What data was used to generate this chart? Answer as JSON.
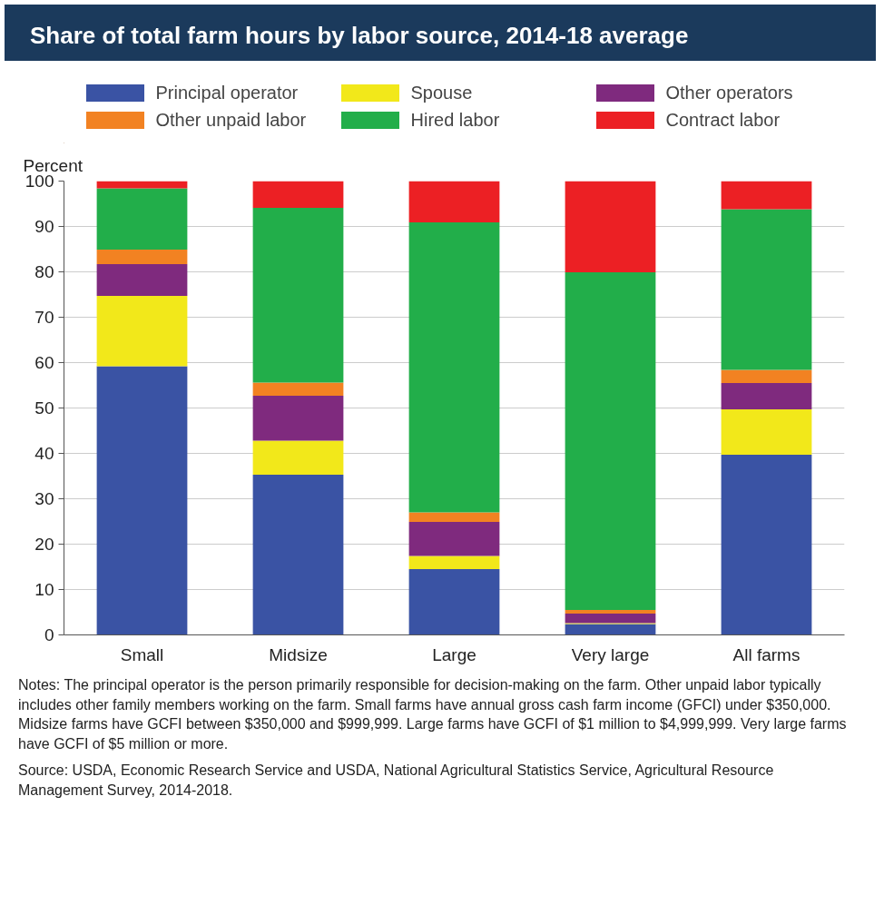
{
  "chart_data": {
    "type": "bar",
    "stacked": true,
    "title": "Share of total farm hours by labor source, 2014-18 average",
    "ylabel": "Percent",
    "categories": [
      "Small",
      "Midsize",
      "Large",
      "Very large",
      "All farms"
    ],
    "series": [
      {
        "name": "Principal operator",
        "color": "#3a53a4",
        "values": [
          59.2,
          35.3,
          14.5,
          2.4,
          39.7
        ]
      },
      {
        "name": "Spouse",
        "color": "#f2e81a",
        "values": [
          15.5,
          7.5,
          2.9,
          0.2,
          10.0
        ]
      },
      {
        "name": "Other operators",
        "color": "#7f2a7e",
        "values": [
          7.0,
          9.9,
          7.5,
          2.1,
          5.8
        ]
      },
      {
        "name": "Other unpaid labor",
        "color": "#f28222",
        "values": [
          3.2,
          2.9,
          2.1,
          0.8,
          2.9
        ]
      },
      {
        "name": "Hired labor",
        "color": "#22ae4a",
        "values": [
          13.5,
          38.5,
          63.9,
          74.4,
          35.4
        ]
      },
      {
        "name": "Contract labor",
        "color": "#ec2024",
        "values": [
          1.6,
          5.9,
          9.1,
          20.1,
          6.2
        ]
      }
    ],
    "ylim": [
      0,
      100
    ],
    "yticks": [
      0,
      10,
      20,
      30,
      40,
      50,
      60,
      70,
      80,
      90,
      100
    ],
    "grid": "y",
    "legend": "top",
    "annotations": [
      "Notes: The principal operator is the person primarily responsible for decision-making on the farm. Other unpaid labor typically includes other family members working on the farm. Small farms have annual gross cash farm income (GFCI) under $350,000. Midsize farms have GCFI between $350,000 and $999,999. Large farms have GCFI of $1 million to $4,999,999. Very large farms have GCFI of $5 million or more.",
      "Source: USDA, Economic Research Service and USDA, National Agricultural Statistics Service, Agricultural Resource Management Survey, 2014-2018."
    ]
  }
}
